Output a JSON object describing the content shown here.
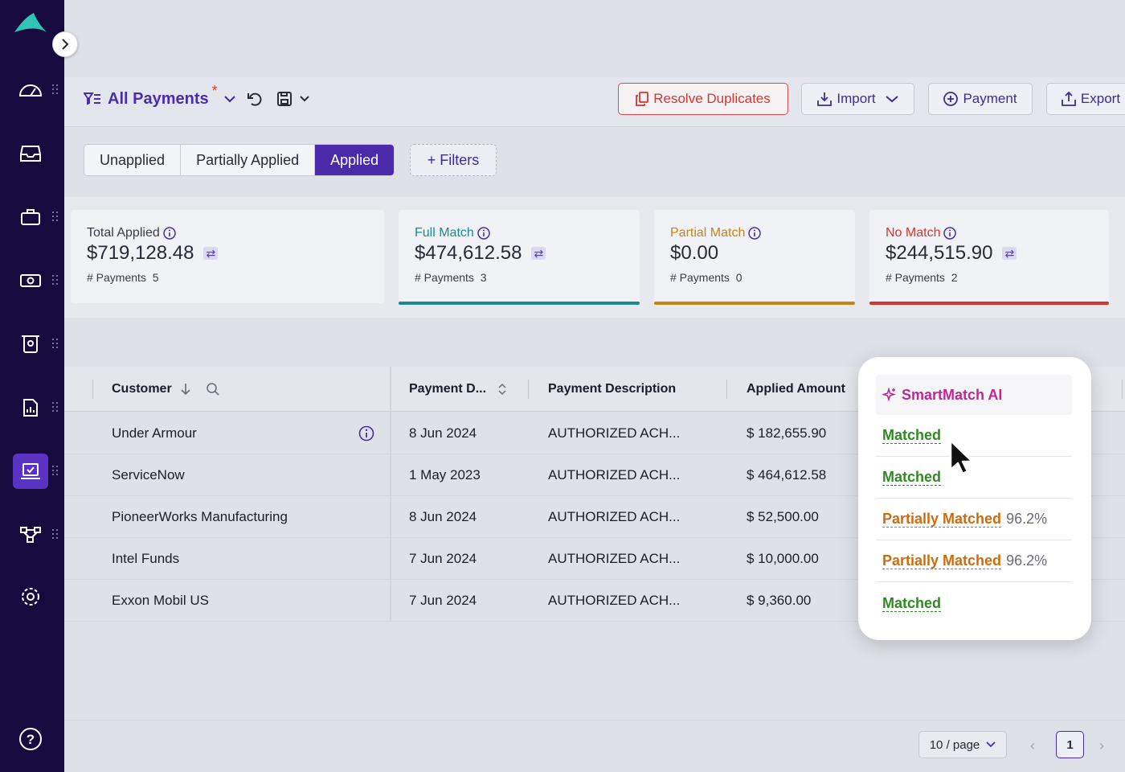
{
  "sidebar": {
    "items": [
      {
        "icon": "speedometer-icon"
      },
      {
        "icon": "inbox-icon"
      },
      {
        "icon": "briefcase-icon"
      },
      {
        "icon": "money-transfer-icon"
      },
      {
        "icon": "receipt-icon"
      },
      {
        "icon": "report-icon"
      },
      {
        "icon": "payment-apply-icon",
        "active": true
      },
      {
        "icon": "workflow-icon"
      },
      {
        "icon": "settings-icon"
      },
      {
        "icon": "help-icon"
      }
    ]
  },
  "header": {
    "view_title": "All Payments",
    "unsaved_marker": "*",
    "buttons": {
      "resolve_duplicates": "Resolve Duplicates",
      "import": "Import",
      "payment": "Payment",
      "export": "Export"
    }
  },
  "status_tabs": {
    "items": [
      "Unapplied",
      "Partially Applied",
      "Applied"
    ],
    "selected": "Applied",
    "filters_label": "+ Filters"
  },
  "summary_cards": [
    {
      "label": "Total Applied",
      "amount": "$719,128.48",
      "count_label": "# Payments",
      "count": "5",
      "color": "#3a3a48"
    },
    {
      "label": "Full Match",
      "amount": "$474,612.58",
      "count_label": "# Payments",
      "count": "3",
      "color": "#1a8a90"
    },
    {
      "label": "Partial Match",
      "amount": "$0.00",
      "count_label": "# Payments",
      "count": "0",
      "color": "#c88312"
    },
    {
      "label": "No Match",
      "amount": "$244,515.90",
      "count_label": "# Payments",
      "count": "2",
      "color": "#d8332f"
    }
  ],
  "table": {
    "columns": [
      "Customer",
      "Payment D...",
      "Payment Description",
      "Applied Amount"
    ],
    "rows": [
      {
        "customer": "Under Armour",
        "date": "8 Jun 2024",
        "description": "AUTHORIZED ACH...",
        "amount": "$ 182,655.90"
      },
      {
        "customer": "ServiceNow",
        "date": "1 May 2023",
        "description": "AUTHORIZED ACH...",
        "amount": "$ 464,612.58"
      },
      {
        "customer": "PioneerWorks Manufacturing",
        "date": "8 Jun 2024",
        "description": "AUTHORIZED ACH...",
        "amount": "$ 52,500.00"
      },
      {
        "customer": "Intel Funds",
        "date": "7 Jun 2024",
        "description": "AUTHORIZED ACH...",
        "amount": "$ 10,000.00"
      },
      {
        "customer": "Exxon Mobil US",
        "date": "7 Jun 2024",
        "description": "AUTHORIZED ACH...",
        "amount": "$ 9,360.00"
      }
    ]
  },
  "smartmatch": {
    "title": "SmartMatch AI",
    "rows": [
      {
        "status": "Matched",
        "pct": ""
      },
      {
        "status": "Matched",
        "pct": ""
      },
      {
        "status": "Partially Matched",
        "pct": "96.2%"
      },
      {
        "status": "Partially Matched",
        "pct": "96.2%"
      },
      {
        "status": "Matched",
        "pct": ""
      }
    ]
  },
  "pagination": {
    "page_size": "10 / page",
    "current_page": "1"
  }
}
